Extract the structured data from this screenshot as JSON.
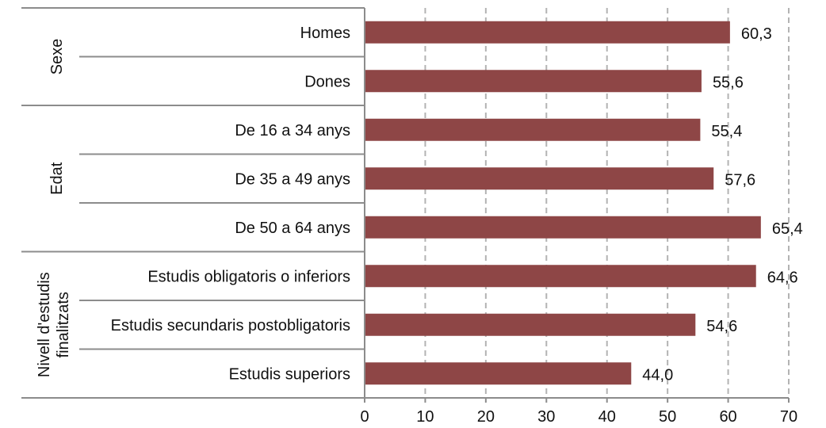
{
  "chart_data": {
    "type": "bar",
    "orientation": "horizontal",
    "groups": [
      {
        "label": "Sexe",
        "count": 2
      },
      {
        "label": "Edat",
        "count": 3
      },
      {
        "label": "Nivell d'estudis finalitzats",
        "lines": [
          "Nivell d'estudis",
          "finalitzats"
        ],
        "count": 3
      }
    ],
    "categories": [
      "Homes",
      "Dones",
      "De 16 a 34 anys",
      "De 35 a 49 anys",
      "De 50 a 64 anys",
      "Estudis obligatoris o inferiors",
      "Estudis secundaris postobligatoris",
      "Estudis superiors"
    ],
    "values": [
      60.3,
      55.6,
      55.4,
      57.6,
      65.4,
      64.6,
      54.6,
      44.0
    ],
    "value_labels": [
      "60,3",
      "55,6",
      "55,4",
      "57,6",
      "65,4",
      "64,6",
      "54,6",
      "44,0"
    ],
    "xlim": [
      0,
      70
    ],
    "xticks": [
      0,
      10,
      20,
      30,
      40,
      50,
      60,
      70
    ],
    "grid": "vertical dashed",
    "bar_color": "#8e4646",
    "axis_color": "#8c8c8c",
    "grid_color": "#b3b3b3"
  }
}
